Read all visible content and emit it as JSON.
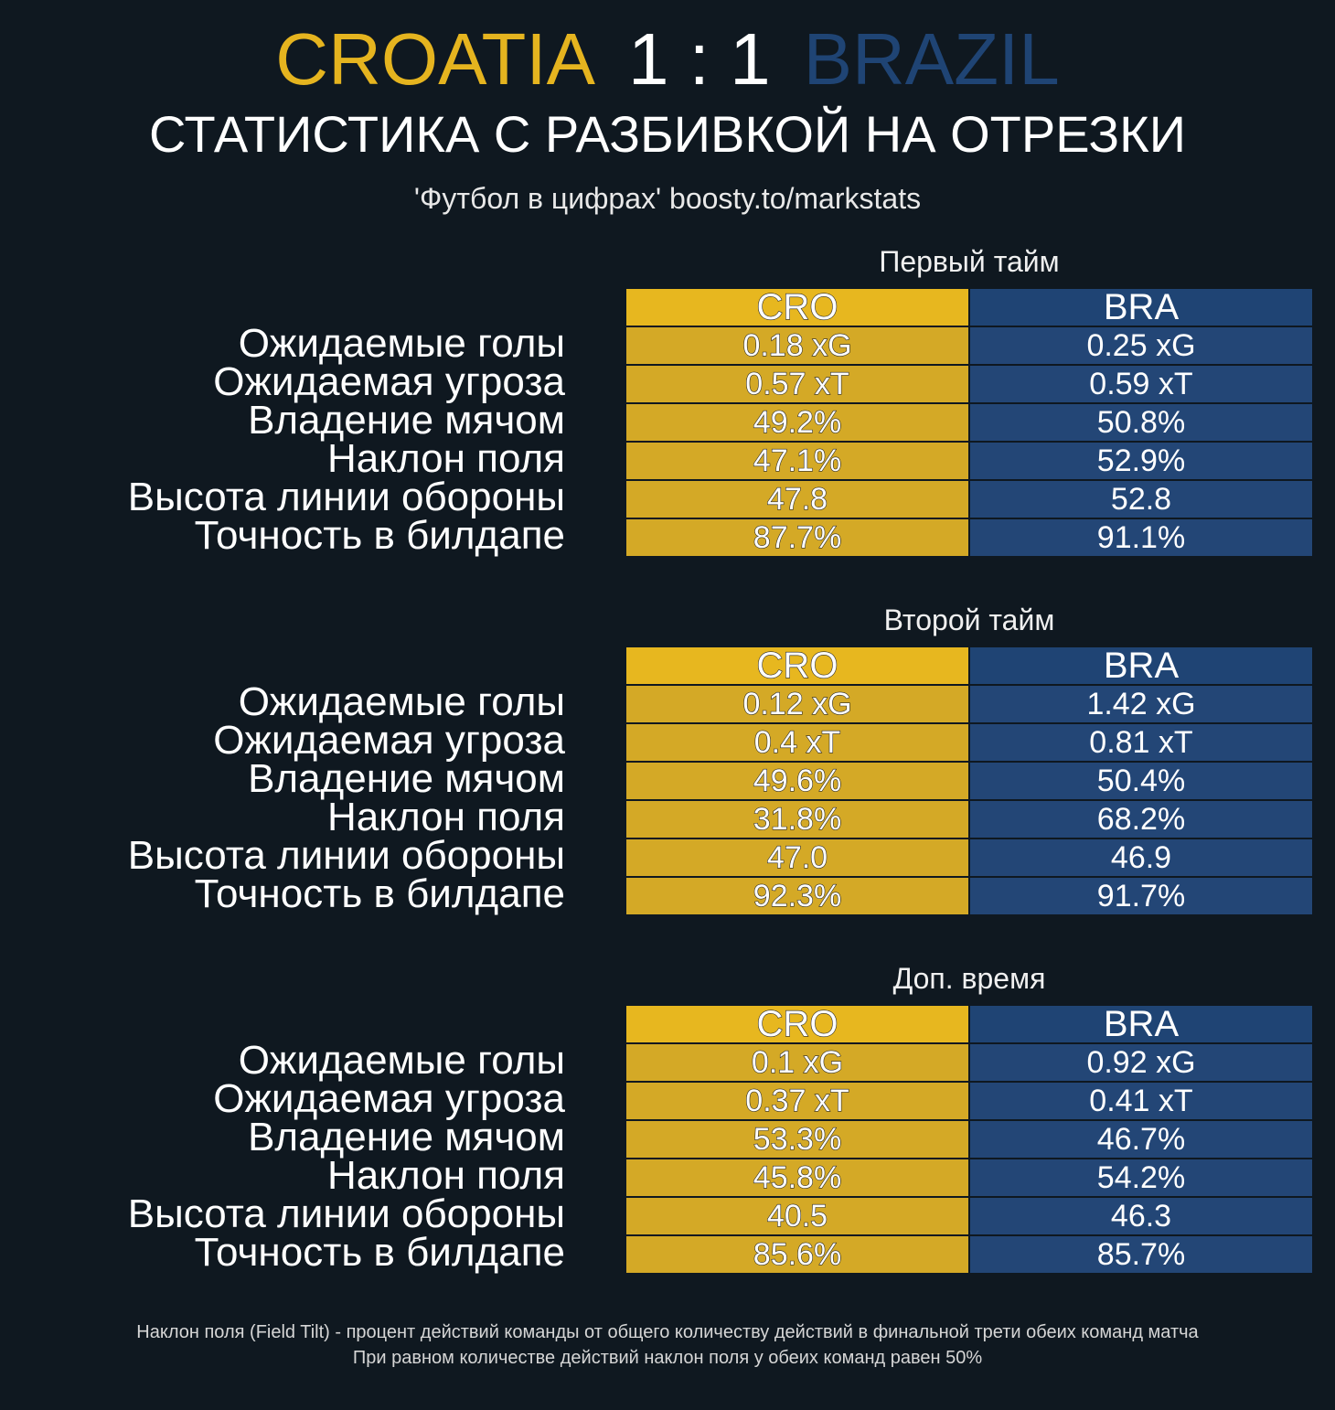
{
  "header": {
    "team_home": "CROATIA",
    "score": "1 : 1",
    "team_away": "BRAZIL",
    "subtitle": "СТАТИСТИКА С РАЗБИВКОЙ НА ОТРЕЗКИ",
    "source": "'Футбол в цифрах' boosty.to/markstats"
  },
  "colors": {
    "background": "#0f1820",
    "home": "#e5b41f",
    "away": "#1f4474"
  },
  "chart_data": {
    "type": "table",
    "columns": [
      "CRO",
      "BRA"
    ],
    "row_labels": [
      "Ожидаемые голы",
      "Ожидаемая угроза",
      "Владение мячом",
      "Наклон поля",
      "Высота линии обороны",
      "Точность в билдапе"
    ],
    "periods": [
      {
        "title": "Первый тайм",
        "CRO": [
          "0.18 xG",
          "0.57 xT",
          "49.2%",
          "47.1%",
          "47.8",
          "87.7%"
        ],
        "BRA": [
          "0.25 xG",
          "0.59 xT",
          "50.8%",
          "52.9%",
          "52.8",
          "91.1%"
        ]
      },
      {
        "title": "Второй тайм",
        "CRO": [
          "0.12 xG",
          "0.4 xT",
          "49.6%",
          "31.8%",
          "47.0",
          "92.3%"
        ],
        "BRA": [
          "1.42 xG",
          "0.81 xT",
          "50.4%",
          "68.2%",
          "46.9",
          "91.7%"
        ]
      },
      {
        "title": "Доп. время",
        "CRO": [
          "0.1 xG",
          "0.37 xT",
          "53.3%",
          "45.8%",
          "40.5",
          "85.6%"
        ],
        "BRA": [
          "0.92 xG",
          "0.41 xT",
          "46.7%",
          "54.2%",
          "46.3",
          "85.7%"
        ]
      }
    ]
  },
  "footnote": {
    "line1": "Наклон поля (Field Tilt) - процент действий команды от общего количеству действий в финальной трети обеих команд матча",
    "line2": "При равном количестве действий наклон поля у обеих команд равен 50%"
  }
}
